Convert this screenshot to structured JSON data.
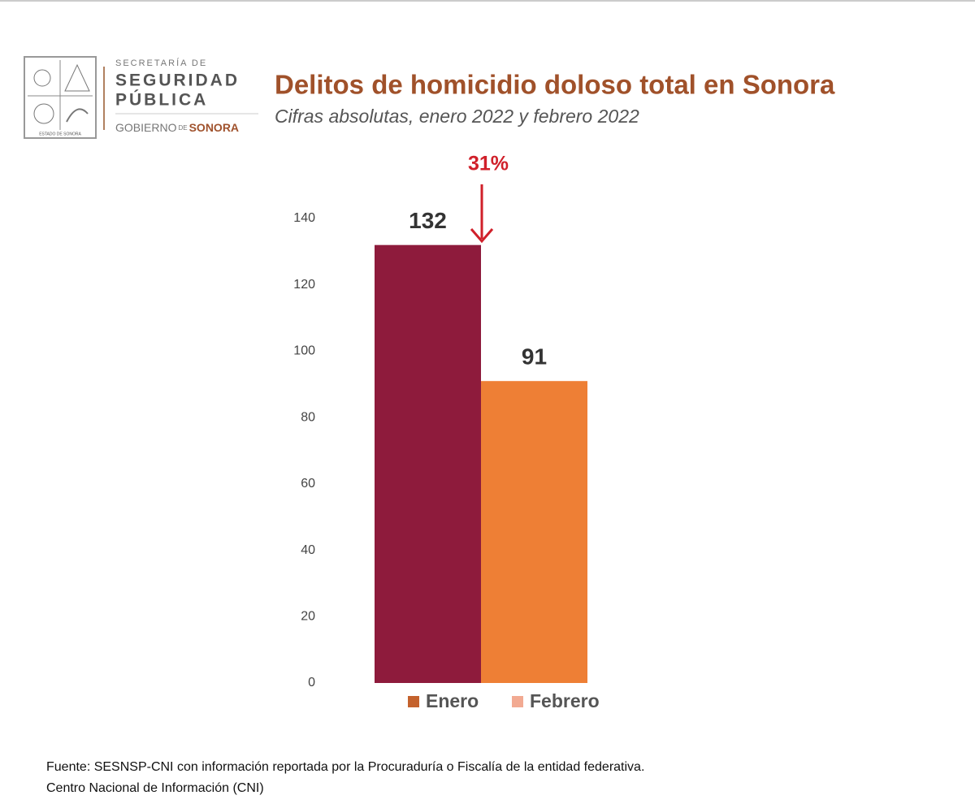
{
  "logo": {
    "line1": "SECRETARÍA DE",
    "line2": "SEGURIDAD",
    "line3": "PÚBLICA",
    "gov1": "GOBIERNO",
    "gov2": "DE",
    "gov3": "SONORA",
    "seal": "ESTADO DE SONORA"
  },
  "chart_data": {
    "type": "bar",
    "title": "Delitos de homicidio doloso total en Sonora",
    "subtitle": "Cifras absolutas, enero 2022 y febrero 2022",
    "annotation": "31%",
    "categories": [
      null
    ],
    "series": [
      {
        "name": "Enero",
        "color": "#8e1b3c",
        "legend_color": "#c4622d",
        "values": [
          132
        ]
      },
      {
        "name": "Febrero",
        "color": "#ee7f35",
        "legend_color": "#f2aa92",
        "values": [
          91
        ]
      }
    ],
    "ylim": [
      0,
      140
    ],
    "yticks": [
      0,
      20,
      40,
      60,
      80,
      100,
      120,
      140
    ],
    "grid": false,
    "legend": "bottom"
  },
  "source": [
    "Fuente: SESNSP-CNI con información reportada por la Procuraduría o Fiscalía de la entidad federativa.",
    "Centro Nacional de Información (CNI)"
  ]
}
